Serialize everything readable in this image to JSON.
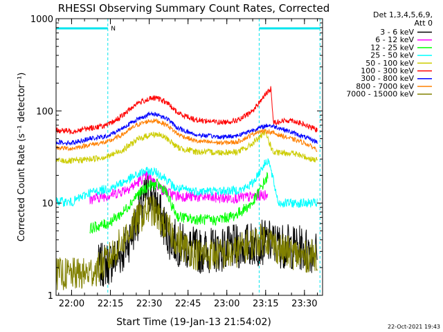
{
  "chart_data": {
    "type": "line",
    "title": "RHESSI Observing Summary Count Rates, Corrected",
    "xlabel": "Start Time (19-Jan-13 21:54:02)",
    "ylabel": "Corrected Count Rate (s⁻¹ detector⁻¹)",
    "yscale": "log",
    "ylim": [
      1,
      1000
    ],
    "xlim_minutes": [
      -6,
      97
    ],
    "xticks": [
      {
        "t": 0,
        "label": "22:00"
      },
      {
        "t": 15,
        "label": "22:15"
      },
      {
        "t": 30,
        "label": "22:30"
      },
      {
        "t": 45,
        "label": "22:45"
      },
      {
        "t": 60,
        "label": "23:00"
      },
      {
        "t": 75,
        "label": "23:15"
      },
      {
        "t": 90,
        "label": "23:30"
      }
    ],
    "yticks": [
      {
        "v": 1,
        "label": "1"
      },
      {
        "v": 10,
        "label": "10"
      },
      {
        "v": 100,
        "label": "100"
      },
      {
        "v": 1000,
        "label": "1000"
      }
    ],
    "legend_header": [
      "Det 1,3,4,5,6,9,",
      "Att 0"
    ],
    "legend_position": "right",
    "annotations": [
      {
        "text": "N",
        "t": 14.5
      }
    ],
    "night_intervals": [
      [
        -6,
        14
      ],
      [
        72.5,
        96
      ]
    ],
    "date_stamp": "22-Oct-2021 19:43",
    "series": [
      {
        "name": "3 - 6 keV",
        "color": "#000000",
        "points": [
          [
            10,
            2.0
          ],
          [
            15,
            2.3
          ],
          [
            20,
            3.0
          ],
          [
            24,
            5.2
          ],
          [
            27,
            8.8
          ],
          [
            29,
            13
          ],
          [
            30,
            14
          ],
          [
            32,
            11
          ],
          [
            35,
            6.5
          ],
          [
            38,
            4.2
          ],
          [
            42,
            3.5
          ],
          [
            50,
            3.0
          ],
          [
            60,
            3.2
          ],
          [
            68,
            3.5
          ],
          [
            75,
            3.8
          ],
          [
            80,
            3.5
          ],
          [
            90,
            3.2
          ],
          [
            95,
            3.0
          ]
        ]
      },
      {
        "name": "6 - 12 keV",
        "color": "#ff00ff",
        "points": [
          [
            7,
            11
          ],
          [
            12,
            11.8
          ],
          [
            18,
            13
          ],
          [
            24,
            15.5
          ],
          [
            29,
            20
          ],
          [
            31,
            18
          ],
          [
            35,
            14
          ],
          [
            40,
            12
          ],
          [
            50,
            11.6
          ],
          [
            60,
            11.3
          ],
          [
            68,
            11.6
          ],
          [
            72,
            12
          ],
          [
            76,
            12.4
          ]
        ]
      },
      {
        "name": "12 - 25 keV",
        "color": "#00ff00",
        "points": [
          [
            7,
            5.3
          ],
          [
            14,
            6.0
          ],
          [
            20,
            8.0
          ],
          [
            25,
            12
          ],
          [
            30,
            15.5
          ],
          [
            33,
            16
          ],
          [
            36,
            14
          ],
          [
            39,
            9.0
          ],
          [
            41,
            7.2
          ],
          [
            45,
            6.8
          ],
          [
            55,
            6.5
          ],
          [
            63,
            7.3
          ],
          [
            70,
            10
          ],
          [
            74,
            16
          ],
          [
            76,
            20
          ]
        ]
      },
      {
        "name": "25 - 50 keV",
        "color": "#00ffff",
        "points": [
          [
            -6,
            10.5
          ],
          [
            0,
            10.2
          ],
          [
            7,
            13.0
          ],
          [
            15,
            14.5
          ],
          [
            22,
            18
          ],
          [
            28,
            22
          ],
          [
            32,
            22
          ],
          [
            36,
            19
          ],
          [
            40,
            14.5
          ],
          [
            48,
            13.5
          ],
          [
            58,
            13.5
          ],
          [
            66,
            14.0
          ],
          [
            70,
            16.5
          ],
          [
            73,
            23
          ],
          [
            76,
            30
          ],
          [
            80,
            10
          ],
          [
            90,
            10
          ],
          [
            95,
            10
          ]
        ]
      },
      {
        "name": "50 - 100 keV",
        "color": "#cccc00",
        "points": [
          [
            -6,
            29
          ],
          [
            0,
            28.5
          ],
          [
            7,
            30
          ],
          [
            14,
            32
          ],
          [
            20,
            38
          ],
          [
            25,
            48
          ],
          [
            30,
            55
          ],
          [
            33,
            56
          ],
          [
            37,
            50
          ],
          [
            41,
            40
          ],
          [
            48,
            36
          ],
          [
            58,
            35.5
          ],
          [
            64,
            36
          ],
          [
            68,
            40
          ],
          [
            72,
            50
          ],
          [
            75,
            58
          ],
          [
            78,
            35
          ],
          [
            85,
            35
          ],
          [
            95,
            29
          ]
        ]
      },
      {
        "name": "100 - 300 keV",
        "color": "#ff0000",
        "points": [
          [
            -6,
            62
          ],
          [
            0,
            60
          ],
          [
            7,
            65
          ],
          [
            14,
            70
          ],
          [
            20,
            90
          ],
          [
            25,
            120
          ],
          [
            30,
            135
          ],
          [
            33,
            138
          ],
          [
            37,
            122
          ],
          [
            41,
            95
          ],
          [
            48,
            80
          ],
          [
            58,
            75
          ],
          [
            65,
            80
          ],
          [
            70,
            100
          ],
          [
            74,
            140
          ],
          [
            77,
            175
          ],
          [
            78,
            75
          ],
          [
            85,
            80
          ],
          [
            95,
            62
          ]
        ]
      },
      {
        "name": "300 - 800 keV",
        "color": "#0000ff",
        "points": [
          [
            -6,
            46
          ],
          [
            0,
            45
          ],
          [
            7,
            50
          ],
          [
            14,
            53
          ],
          [
            20,
            66
          ],
          [
            25,
            80
          ],
          [
            30,
            92
          ],
          [
            33,
            92
          ],
          [
            37,
            82
          ],
          [
            41,
            65
          ],
          [
            48,
            55
          ],
          [
            58,
            52
          ],
          [
            64,
            54
          ],
          [
            70,
            62
          ],
          [
            76,
            70
          ],
          [
            80,
            66
          ],
          [
            90,
            52
          ],
          [
            95,
            46
          ]
        ]
      },
      {
        "name": "800 - 7000 keV",
        "color": "#ff8000",
        "points": [
          [
            -6,
            40
          ],
          [
            0,
            39
          ],
          [
            7,
            43
          ],
          [
            14,
            46
          ],
          [
            20,
            56
          ],
          [
            25,
            70
          ],
          [
            30,
            78
          ],
          [
            33,
            78
          ],
          [
            37,
            70
          ],
          [
            41,
            56
          ],
          [
            48,
            47
          ],
          [
            58,
            45
          ],
          [
            64,
            46
          ],
          [
            68,
            52
          ],
          [
            72,
            60
          ],
          [
            76,
            60
          ],
          [
            80,
            55
          ],
          [
            90,
            45
          ],
          [
            95,
            38
          ]
        ]
      },
      {
        "name": "7000 - 15000 keV",
        "color": "#808000",
        "points": [
          [
            -6,
            1.7
          ],
          [
            5,
            1.7
          ],
          [
            10,
            1.9
          ],
          [
            15,
            2.6
          ],
          [
            20,
            4.0
          ],
          [
            25,
            6.3
          ],
          [
            29,
            8.4
          ],
          [
            31,
            8.5
          ],
          [
            34,
            6.8
          ],
          [
            38,
            4.9
          ],
          [
            42,
            3.6
          ],
          [
            48,
            2.8
          ],
          [
            55,
            2.8
          ],
          [
            62,
            2.8
          ],
          [
            68,
            3.5
          ],
          [
            75,
            4.2
          ],
          [
            80,
            3.2
          ],
          [
            90,
            2.6
          ],
          [
            95,
            2.8
          ]
        ]
      }
    ]
  }
}
